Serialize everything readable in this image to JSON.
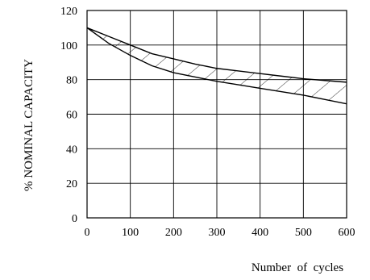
{
  "chart_data": {
    "type": "area",
    "title": "",
    "xlabel": "Number  of  cycles",
    "ylabel": "% NOMINAL CAPACITY",
    "xlim": [
      0,
      600
    ],
    "ylim": [
      0,
      120
    ],
    "xticks": [
      0,
      100,
      200,
      300,
      400,
      500,
      600
    ],
    "yticks": [
      0,
      20,
      40,
      60,
      80,
      100,
      120
    ],
    "xtick_labels": [
      "0",
      "100",
      "200",
      "300",
      "400",
      "500",
      "600"
    ],
    "ytick_labels": [
      "0",
      "20",
      "40",
      "60",
      "80",
      "100",
      "120"
    ],
    "grid": true,
    "band_fill": "diagonal hatch",
    "series": [
      {
        "x": [
          0,
          50,
          100,
          150,
          200,
          250,
          300,
          350,
          400,
          450,
          500,
          550,
          600
        ],
        "values": [
          110,
          105,
          100,
          95,
          92,
          89,
          86.5,
          85,
          83.5,
          82,
          80.5,
          79.5,
          78.5
        ]
      },
      {
        "x": [
          0,
          50,
          100,
          150,
          200,
          250,
          300,
          350,
          400,
          450,
          500,
          550,
          600
        ],
        "values": [
          110,
          101,
          94,
          88,
          84,
          81.5,
          79,
          77,
          75,
          73,
          71,
          68.5,
          66
        ]
      }
    ]
  }
}
